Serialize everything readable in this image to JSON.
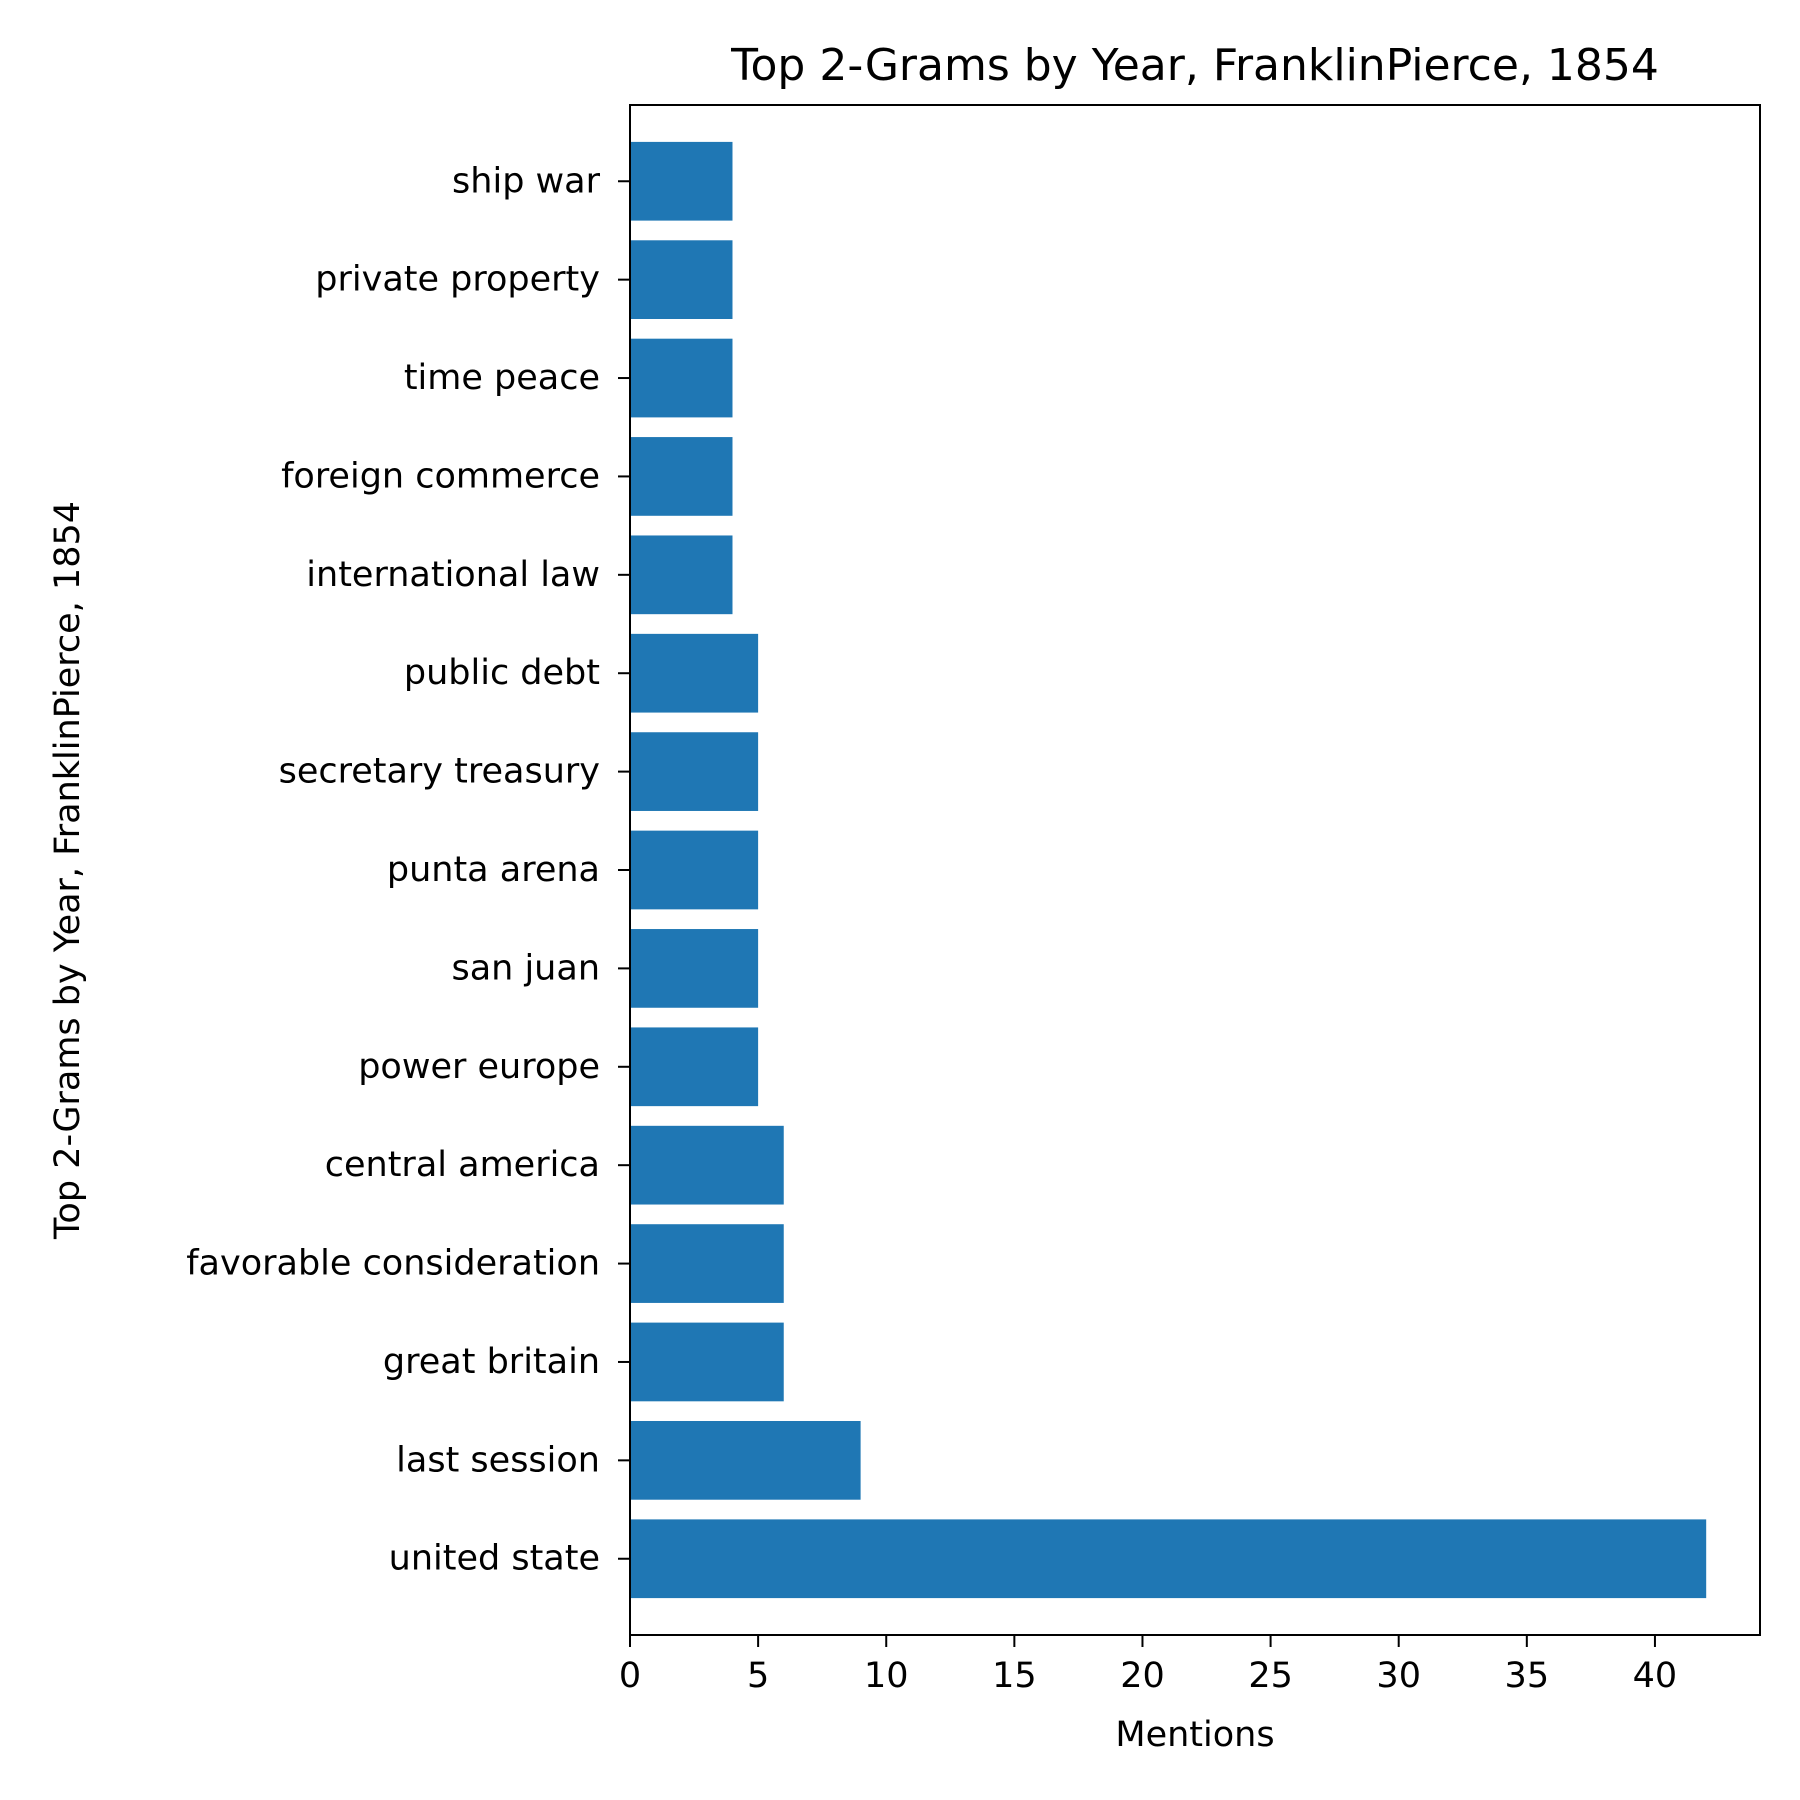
{
  "chart_data": {
    "type": "bar",
    "orientation": "horizontal",
    "title": "Top 2-Grams by Year, FranklinPierce, 1854",
    "xlabel": "Mentions",
    "ylabel": "Top 2-Grams by Year, FranklinPierce, 1854",
    "categories": [
      "united state",
      "last session",
      "great britain",
      "favorable consideration",
      "central america",
      "power europe",
      "san juan",
      "punta arena",
      "secretary treasury",
      "public debt",
      "international law",
      "foreign commerce",
      "time peace",
      "private property",
      "ship war"
    ],
    "values": [
      42,
      9,
      6,
      6,
      6,
      5,
      5,
      5,
      5,
      5,
      4,
      4,
      4,
      4,
      4
    ],
    "xlim": [
      0,
      44.1
    ],
    "xticks": [
      0,
      5,
      10,
      15,
      20,
      25,
      30,
      35,
      40
    ],
    "grid": false,
    "bar_color": "#1f77b4"
  }
}
